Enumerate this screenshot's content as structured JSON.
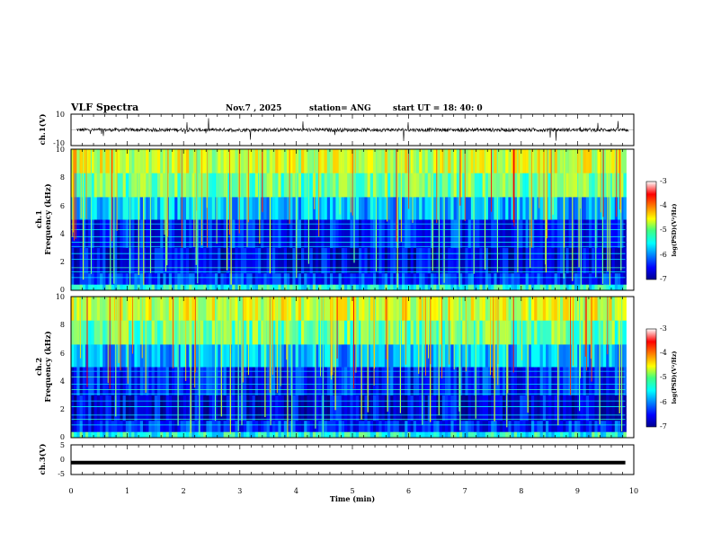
{
  "header": {
    "title": "VLF Spectra",
    "date": "Nov.7 , 2025",
    "station": "station= ANG",
    "start_time": "start UT = 18: 40: 0"
  },
  "chart_data": [
    {
      "type": "line",
      "id": "ch1-waveform",
      "ylabel": "ch.1(V)",
      "ylim": [
        -10,
        10
      ],
      "ytick_labels": [
        "10",
        "-10"
      ],
      "baseline": 0,
      "xlim": [
        0,
        10
      ]
    },
    {
      "type": "heatmap",
      "id": "ch1-spectrogram",
      "ylabel_line1": "ch.1",
      "ylabel_line2": "Frequency (kHz)",
      "ylim": [
        0,
        10
      ],
      "ytick_labels": [
        "0",
        "2",
        "4",
        "6",
        "8",
        "10"
      ],
      "data_end_min": 9.85,
      "colorbar": {
        "label": "log(PSD)(V²/Hz)",
        "range": [
          -7,
          -3
        ],
        "tick_labels": [
          "-3",
          "-4",
          "-5",
          "-6",
          "-7"
        ]
      }
    },
    {
      "type": "heatmap",
      "id": "ch2-spectrogram",
      "ylabel_line1": "ch.2",
      "ylabel_line2": "Frequency (kHz)",
      "ylim": [
        0,
        10
      ],
      "ytick_labels": [
        "0",
        "2",
        "4",
        "6",
        "8",
        "10"
      ],
      "data_end_min": 9.85,
      "colorbar": {
        "label": "log(PSD)(V²/Hz)",
        "range": [
          -7,
          -3
        ],
        "tick_labels": [
          "-3",
          "-4",
          "-5",
          "-6",
          "-7"
        ]
      }
    },
    {
      "type": "line",
      "id": "ch3-waveform",
      "ylabel": "ch.3(V)",
      "ylim": [
        -5,
        5
      ],
      "ytick_labels": [
        "5",
        "0",
        "-5"
      ],
      "value": -1,
      "xlim": [
        0,
        10
      ]
    }
  ],
  "x_axis": {
    "label": "Time (min)",
    "range": [
      0,
      10
    ],
    "tick_labels": [
      "0",
      "1",
      "2",
      "3",
      "4",
      "5",
      "6",
      "7",
      "8",
      "9",
      "10"
    ]
  }
}
